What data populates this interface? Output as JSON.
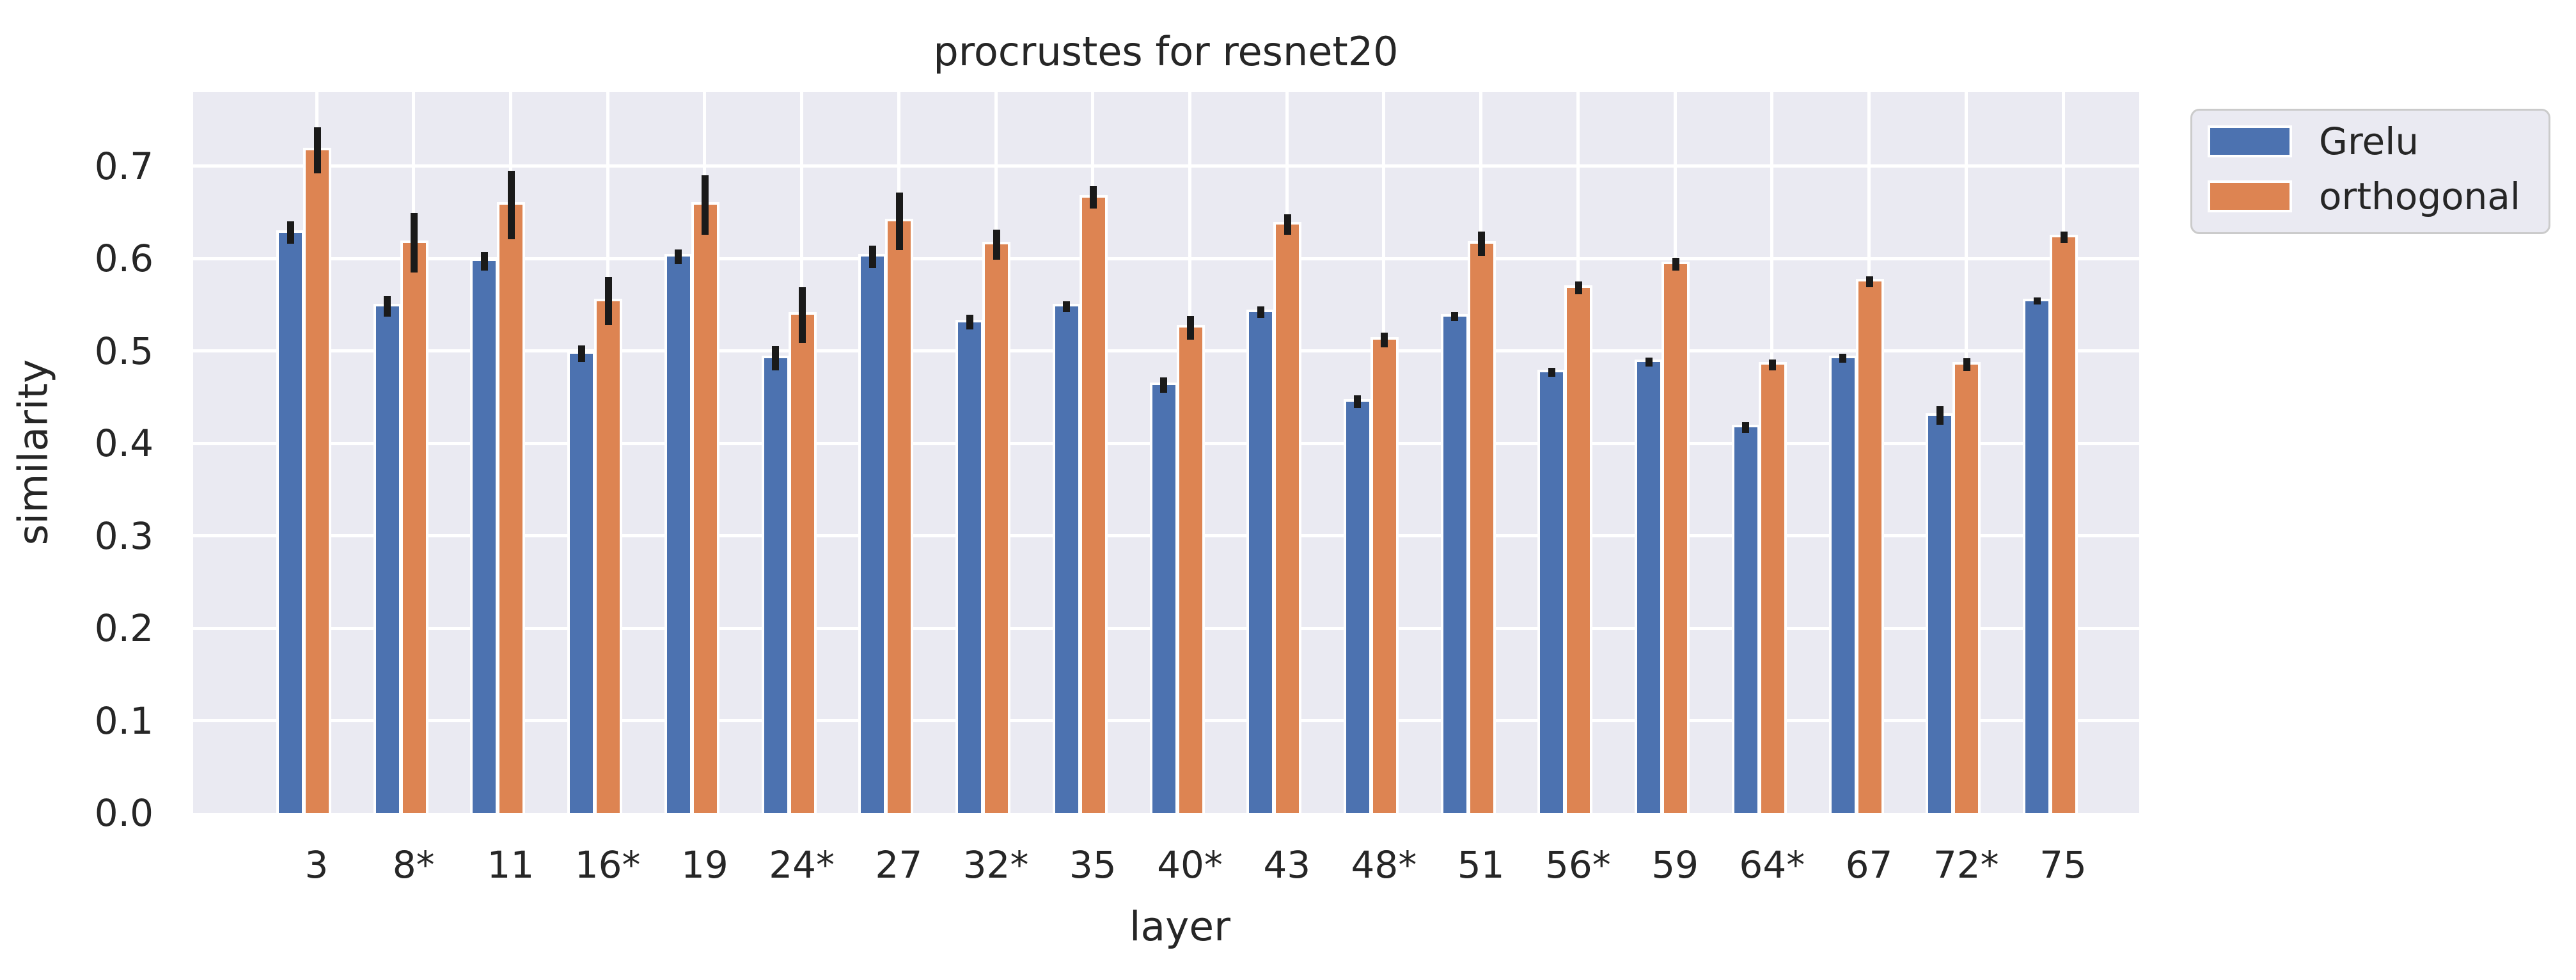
{
  "title": "procrustes for resnet20",
  "xlabel": "layer",
  "ylabel": "similarity",
  "colors": {
    "grelu": "#4C72B0",
    "orthogonal": "#DD8452",
    "plot_background": "#eaeaf2",
    "gridline": "#ffffff",
    "error_bar": "#1a1a1a",
    "text": "#262626",
    "legend_border": "#cbcbcb"
  },
  "legend": {
    "items": [
      {
        "label": "Grelu",
        "color": "#4C72B0"
      },
      {
        "label": "orthogonal",
        "color": "#DD8452"
      }
    ]
  },
  "chart_data": {
    "type": "bar",
    "title": "procrustes for resnet20",
    "xlabel": "layer",
    "ylabel": "similarity",
    "categories": [
      "3",
      "8*",
      "11",
      "16*",
      "19",
      "24*",
      "27",
      "32*",
      "35",
      "40*",
      "43",
      "48*",
      "51",
      "56*",
      "59",
      "64*",
      "67",
      "72*",
      "75"
    ],
    "series": [
      {
        "name": "Grelu",
        "color": "#4C72B0",
        "values": [
          0.628,
          0.548,
          0.597,
          0.497,
          0.602,
          0.492,
          0.602,
          0.531,
          0.548,
          0.463,
          0.542,
          0.445,
          0.537,
          0.477,
          0.488,
          0.417,
          0.492,
          0.43,
          0.554
        ],
        "errors": [
          0.012,
          0.011,
          0.01,
          0.009,
          0.008,
          0.013,
          0.012,
          0.008,
          0.006,
          0.008,
          0.006,
          0.007,
          0.005,
          0.005,
          0.005,
          0.006,
          0.005,
          0.01,
          0.004
        ]
      },
      {
        "name": "orthogonal",
        "color": "#DD8452",
        "values": [
          0.717,
          0.617,
          0.658,
          0.554,
          0.658,
          0.539,
          0.64,
          0.615,
          0.666,
          0.525,
          0.637,
          0.512,
          0.616,
          0.568,
          0.594,
          0.485,
          0.575,
          0.485,
          0.623
        ],
        "errors": [
          0.025,
          0.032,
          0.037,
          0.026,
          0.032,
          0.03,
          0.031,
          0.016,
          0.012,
          0.013,
          0.011,
          0.008,
          0.013,
          0.007,
          0.007,
          0.006,
          0.006,
          0.007,
          0.006
        ]
      }
    ],
    "ylim": [
      0,
      0.78
    ],
    "yticks": [
      0.0,
      0.1,
      0.2,
      0.3,
      0.4,
      0.5,
      0.6,
      0.7
    ],
    "grid": true,
    "legend_position": "upper right outside"
  }
}
